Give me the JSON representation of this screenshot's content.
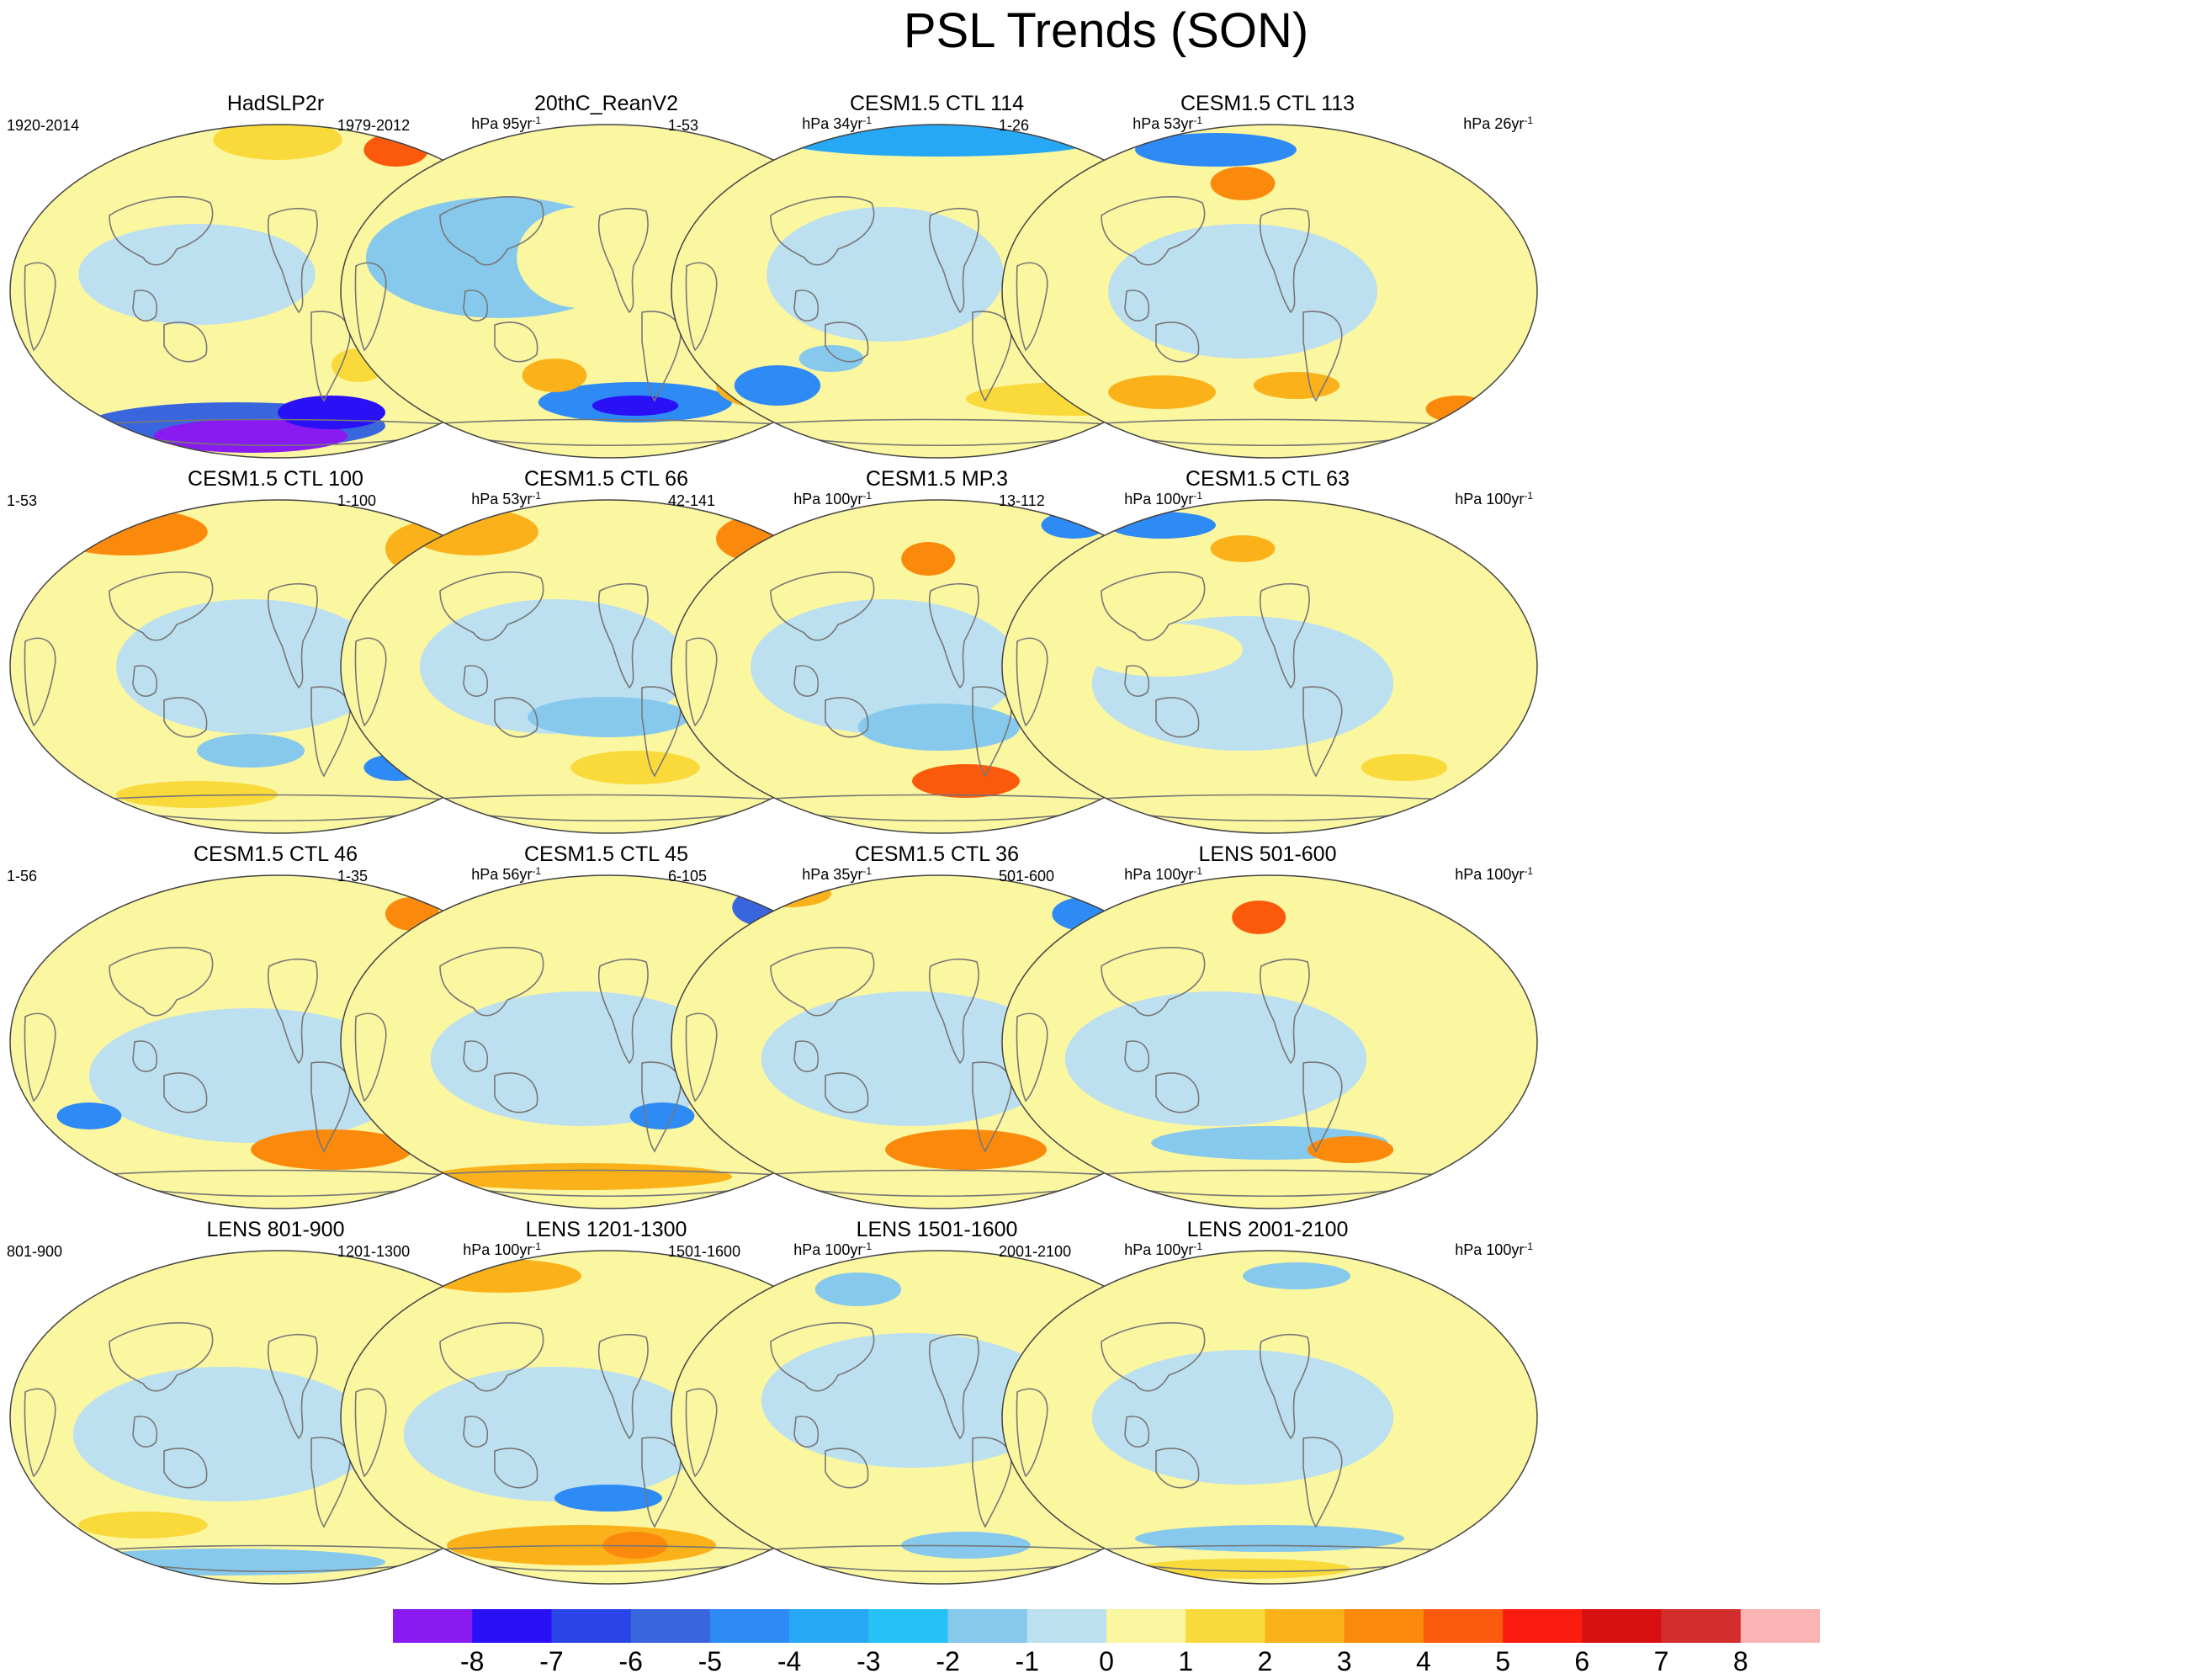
{
  "title": "PSL Trends (SON)",
  "panels": [
    {
      "title": "HadSLP2r",
      "period": "1920-2014",
      "units_prefix": "hPa 95yr",
      "units_sup": "-1"
    },
    {
      "title": "20thC_ReanV2",
      "period": "1979-2012",
      "units_prefix": "hPa 34yr",
      "units_sup": "-1"
    },
    {
      "title": "CESM1.5 CTL 114",
      "period": "1-53",
      "units_prefix": "hPa 53yr",
      "units_sup": "-1"
    },
    {
      "title": "CESM1.5 CTL 113",
      "period": "1-26",
      "units_prefix": "hPa 26yr",
      "units_sup": "-1"
    },
    {
      "title": "CESM1.5 CTL 100",
      "period": "1-53",
      "units_prefix": "hPa 53yr",
      "units_sup": "-1"
    },
    {
      "title": "CESM1.5 CTL 66",
      "period": "1-100",
      "units_prefix": "hPa 100yr",
      "units_sup": "-1"
    },
    {
      "title": "CESM1.5 MP.3",
      "period": "42-141",
      "units_prefix": "hPa 100yr",
      "units_sup": "-1"
    },
    {
      "title": "CESM1.5 CTL 63",
      "period": "13-112",
      "units_prefix": "hPa 100yr",
      "units_sup": "-1"
    },
    {
      "title": "CESM1.5 CTL 46",
      "period": "1-56",
      "units_prefix": "hPa 56yr",
      "units_sup": "-1"
    },
    {
      "title": "CESM1.5 CTL 45",
      "period": "1-35",
      "units_prefix": "hPa 35yr",
      "units_sup": "-1"
    },
    {
      "title": "CESM1.5 CTL 36",
      "period": "6-105",
      "units_prefix": "hPa 100yr",
      "units_sup": "-1"
    },
    {
      "title": "LENS 501-600",
      "period": "501-600",
      "units_prefix": "hPa 100yr",
      "units_sup": "-1"
    },
    {
      "title": "LENS 801-900",
      "period": "801-900",
      "units_prefix": "hPa 100yr",
      "units_sup": "-1"
    },
    {
      "title": "LENS 1201-1300",
      "period": "1201-1300",
      "units_prefix": "hPa 100yr",
      "units_sup": "-1"
    },
    {
      "title": "LENS 1501-1600",
      "period": "1501-1600",
      "units_prefix": "hPa 100yr",
      "units_sup": "-1"
    },
    {
      "title": "LENS 2001-2100",
      "period": "2001-2100",
      "units_prefix": "hPa 100yr",
      "units_sup": "-1"
    }
  ],
  "colorbar": {
    "labels": [
      "-8",
      "-7",
      "-6",
      "-5",
      "-4",
      "-3",
      "-2",
      "-1",
      "0",
      "1",
      "2",
      "3",
      "4",
      "5",
      "6",
      "7",
      "8"
    ],
    "colors": [
      "#8a1bf0",
      "#2a10f5",
      "#2a44e8",
      "#3a66dd",
      "#2e8af5",
      "#27a8f5",
      "#27c2f5",
      "#86c9ec",
      "#bce0f0",
      "#fbf6a0",
      "#fad93a",
      "#fbb21a",
      "#fb8a0c",
      "#fb5a0c",
      "#fb1c10",
      "#d80f10",
      "#d22e2e",
      "#fbb4b4"
    ]
  }
}
